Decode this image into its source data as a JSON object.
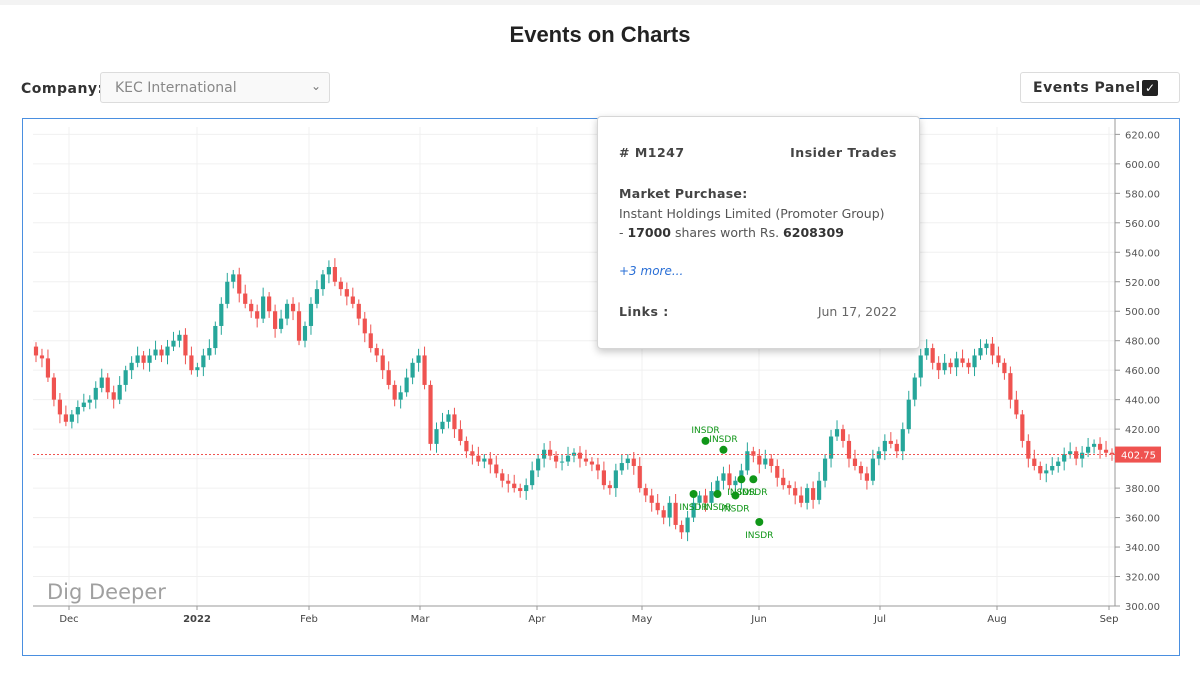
{
  "page": {
    "title": "Events on Charts"
  },
  "filters": {
    "company_label": "Company:",
    "company_value": "KEC International",
    "events_label": "Events Panel"
  },
  "colors": {
    "up": "#26a69a",
    "down": "#ef5350",
    "event": "#109618",
    "frame": "#4a8fe0",
    "price_line": "#ef5350",
    "link": "#2a6fd6"
  },
  "icons": {
    "dropdown": "chevron-down-icon",
    "checkbox": "checkbox-checked-icon"
  },
  "popup": {
    "id": "# M1247",
    "type": "Insider Trades",
    "heading": "Market Purchase:",
    "line1": "Instant Holdings Limited (Promoter Group)",
    "line2_prefix": "- ",
    "shares": "17000",
    "line2_mid": " shares worth Rs. ",
    "value": "6208309",
    "more": "+3 more...",
    "links_label": "Links :",
    "date": "Jun 17, 2022"
  },
  "chart_data": {
    "type": "candlestick",
    "watermark": "Dig Deeper",
    "x_ticks": [
      "Dec",
      "2022",
      "Feb",
      "Mar",
      "Apr",
      "May",
      "Jun",
      "Jul",
      "Aug",
      "Sep"
    ],
    "y_ticks": [
      "300.00",
      "320.00",
      "340.00",
      "360.00",
      "380.00",
      "400.00",
      "420.00",
      "440.00",
      "460.00",
      "480.00",
      "500.00",
      "520.00",
      "540.00",
      "560.00",
      "580.00",
      "600.00",
      "620.00"
    ],
    "ylim": [
      300,
      625
    ],
    "last_price": 402.75,
    "last_price_label": "402.75",
    "close": [
      470,
      468,
      455,
      440,
      430,
      425,
      430,
      435,
      438,
      440,
      448,
      455,
      445,
      440,
      450,
      460,
      465,
      470,
      465,
      470,
      474,
      470,
      476,
      480,
      484,
      470,
      460,
      462,
      470,
      475,
      490,
      505,
      520,
      525,
      512,
      505,
      500,
      495,
      510,
      500,
      488,
      495,
      505,
      500,
      480,
      490,
      505,
      515,
      525,
      530,
      520,
      515,
      510,
      505,
      495,
      485,
      475,
      470,
      460,
      450,
      440,
      445,
      455,
      465,
      470,
      450,
      410,
      420,
      425,
      430,
      420,
      412,
      405,
      402,
      398,
      400,
      396,
      390,
      385,
      383,
      380,
      378,
      382,
      392,
      400,
      406,
      402,
      398,
      398,
      402,
      404,
      400,
      398,
      396,
      392,
      382,
      380,
      392,
      397,
      400,
      395,
      380,
      375,
      370,
      365,
      360,
      370,
      355,
      350,
      360,
      370,
      375,
      370,
      378,
      385,
      390,
      382,
      385,
      392,
      405,
      402,
      396,
      400,
      395,
      387,
      382,
      380,
      375,
      370,
      380,
      372,
      385,
      400,
      415,
      420,
      412,
      400,
      395,
      390,
      385,
      400,
      405,
      412,
      410,
      405,
      420,
      440,
      455,
      470,
      475,
      465,
      460,
      465,
      462,
      468,
      465,
      462,
      470,
      475,
      478,
      470,
      465,
      458,
      440,
      430,
      412,
      400,
      395,
      390,
      392,
      395,
      398,
      403,
      405,
      400,
      404,
      408,
      410,
      406,
      404,
      403
    ],
    "insider_events": [
      {
        "date_index": 112,
        "price": 412,
        "label": "INSDR"
      },
      {
        "date_index": 115,
        "price": 406,
        "label": "INSDR"
      },
      {
        "date_index": 110,
        "price": 376,
        "label": "INSDR"
      },
      {
        "date_index": 114,
        "price": 376,
        "label": "INSDR"
      },
      {
        "date_index": 117,
        "price": 375,
        "label": "INSDR"
      },
      {
        "date_index": 118,
        "price": 386,
        "label": "INSDR"
      },
      {
        "date_index": 120,
        "price": 386,
        "label": "INSDR"
      },
      {
        "date_index": 121,
        "price": 357,
        "label": "INSDR"
      }
    ]
  }
}
